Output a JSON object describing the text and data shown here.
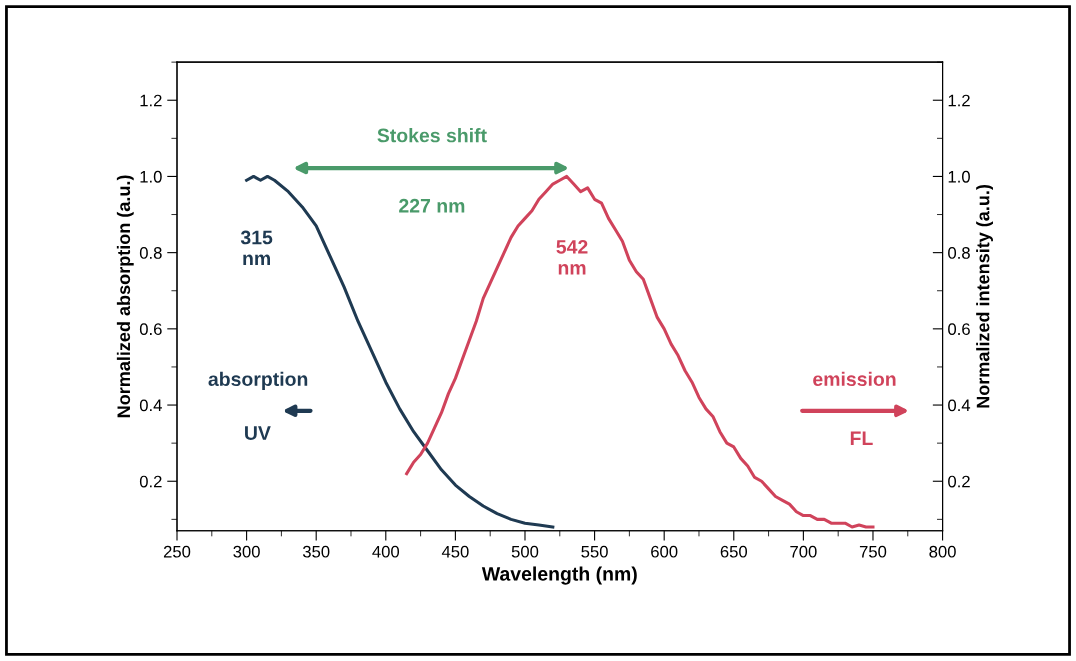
{
  "chart_data": {
    "type": "line",
    "xlabel": "Wavelength (nm)",
    "ylabel": "Normalized absorption (a.u.)",
    "y2label": "Normalized intensity (a.u.)",
    "xlim": [
      250,
      800
    ],
    "xticks": [
      250,
      300,
      350,
      400,
      450,
      500,
      550,
      600,
      650,
      700,
      750,
      800
    ],
    "ylim": [
      0.07,
      1.3
    ],
    "yticks": [
      0.2,
      0.4,
      0.6,
      0.8,
      {
        "value": 1,
        "label": "1.0"
      },
      1.2
    ],
    "y2lim": [
      0.07,
      1.3
    ],
    "y2ticks": [
      0.2,
      0.4,
      0.6,
      0.8,
      {
        "value": 1,
        "label": "1.0"
      },
      1.2
    ],
    "grid": false,
    "legend": false,
    "annotations": [
      "Stokes shift",
      "227 nm",
      "315\nnm",
      "542\nnm",
      "absorption",
      "UV",
      "emission",
      "FL"
    ],
    "series": [
      {
        "color": "#1f3a52",
        "x": [
          300,
          305,
          310,
          315,
          320,
          330,
          340,
          350,
          360,
          370,
          380,
          390,
          400,
          410,
          420,
          430,
          440,
          450,
          460,
          470,
          480,
          490,
          500,
          510,
          520
        ],
        "values": [
          0.99,
          1.0,
          0.99,
          1.0,
          0.99,
          0.96,
          0.92,
          0.87,
          0.79,
          0.71,
          0.62,
          0.54,
          0.46,
          0.39,
          0.33,
          0.28,
          0.23,
          0.19,
          0.16,
          0.135,
          0.115,
          0.1,
          0.09,
          0.085,
          0.08
        ]
      },
      {
        "color": "#d0435b",
        "x": [
          415,
          420,
          425,
          430,
          435,
          440,
          445,
          450,
          455,
          460,
          465,
          470,
          475,
          480,
          485,
          490,
          495,
          500,
          505,
          510,
          515,
          520,
          525,
          530,
          535,
          540,
          545,
          550,
          555,
          560,
          565,
          570,
          575,
          580,
          585,
          590,
          595,
          600,
          605,
          610,
          615,
          620,
          625,
          630,
          635,
          640,
          645,
          650,
          655,
          660,
          665,
          670,
          675,
          680,
          685,
          690,
          695,
          700,
          705,
          710,
          715,
          720,
          725,
          730,
          735,
          740,
          745,
          750
        ],
        "values": [
          0.22,
          0.25,
          0.27,
          0.3,
          0.34,
          0.38,
          0.43,
          0.47,
          0.52,
          0.57,
          0.62,
          0.68,
          0.72,
          0.76,
          0.8,
          0.84,
          0.87,
          0.89,
          0.91,
          0.94,
          0.96,
          0.98,
          0.99,
          1.0,
          0.98,
          0.96,
          0.97,
          0.94,
          0.93,
          0.89,
          0.86,
          0.83,
          0.78,
          0.75,
          0.73,
          0.68,
          0.63,
          0.6,
          0.56,
          0.53,
          0.49,
          0.46,
          0.42,
          0.39,
          0.37,
          0.33,
          0.3,
          0.29,
          0.26,
          0.24,
          0.21,
          0.2,
          0.18,
          0.16,
          0.15,
          0.14,
          0.12,
          0.11,
          0.11,
          0.1,
          0.1,
          0.09,
          0.09,
          0.09,
          0.08,
          0.085,
          0.08,
          0.08
        ]
      }
    ]
  }
}
